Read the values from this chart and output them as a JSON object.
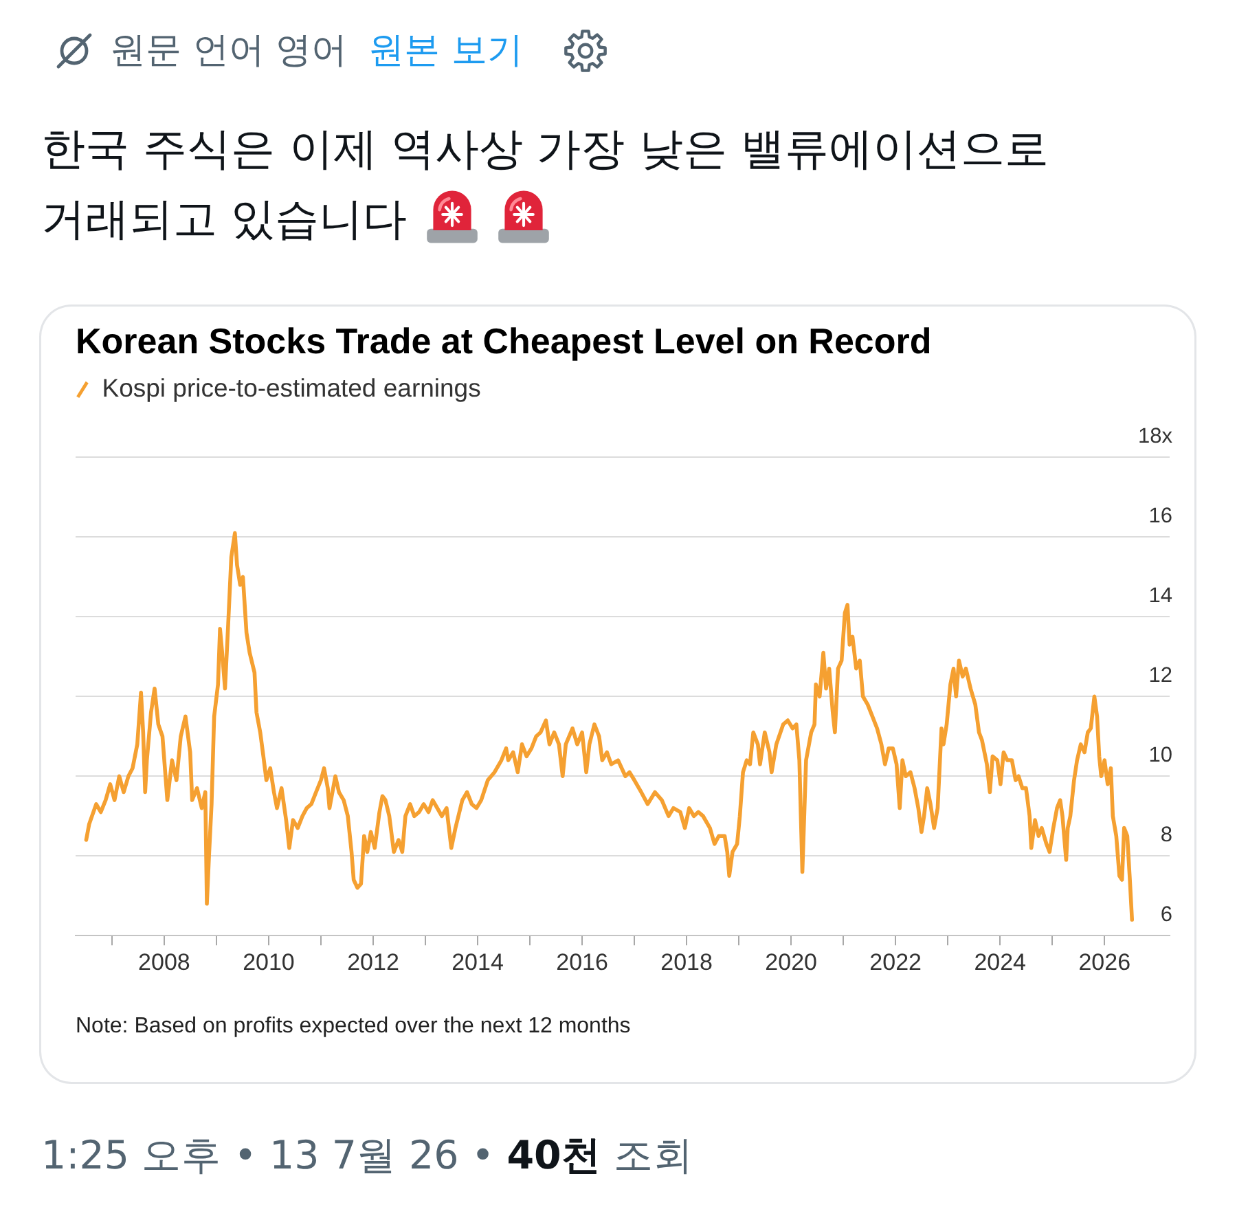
{
  "chart_data": {
    "type": "line",
    "title": "Korean Stocks Trade at Cheapest Level on Record",
    "annotations": [
      "원문 언어 영어",
      "원본 보기",
      "한국 주식은 이제 역사상 가장 낮은 밸류에이션으로 거래되고 있습니다",
      "Note: Based on profits expected over the next 12 months",
      "1:25 오후 • 13 7월 26 •",
      "40천",
      "조회"
    ],
    "x": [
      "2006-07-05",
      "2006-07-26",
      "2006-09-13",
      "2006-10-15",
      "2006-11-18",
      "2006-12-20",
      "2007-01-19",
      "2007-02-21",
      "2007-03-24",
      "2007-04-26",
      "2007-05-25",
      "2007-06-27",
      "2007-07-23",
      "2007-08-07",
      "2007-08-21",
      "2007-09-02",
      "2007-10-01",
      "2007-10-26",
      "2007-11-21",
      "2007-12-20",
      "2008-01-23",
      "2008-02-25",
      "2008-03-27",
      "2008-04-26",
      "2008-05-29",
      "2008-07-01",
      "2008-07-15",
      "2008-08-18",
      "2008-09-20",
      "2008-10-15",
      "2008-10-26",
      "2008-11-10",
      "2008-11-28",
      "2008-12-16",
      "2009-01-12",
      "2009-01-26",
      "2009-02-10",
      "2009-03-02",
      "2009-03-24",
      "2009-04-15",
      "2009-05-10",
      "2009-05-25",
      "2009-06-16",
      "2009-07-05",
      "2009-07-30",
      "2009-08-21",
      "2009-09-24",
      "2009-10-08",
      "2009-11-03",
      "2009-11-25",
      "2009-12-16",
      "2010-01-12",
      "2010-02-07",
      "2010-02-28",
      "2010-04-01",
      "2010-05-03",
      "2010-05-25",
      "2010-06-20",
      "2010-07-23",
      "2010-08-25",
      "2010-09-24",
      "2010-10-26",
      "2010-11-28",
      "2011-01-01",
      "2011-01-23",
      "2011-02-18",
      "2011-03-02",
      "2011-04-12",
      "2011-05-07",
      "2011-06-09",
      "2011-07-08",
      "2011-08-03",
      "2011-08-18",
      "2011-09-13",
      "2011-10-08",
      "2011-10-30",
      "2011-11-21",
      "2011-12-16",
      "2012-01-12",
      "2012-02-14",
      "2012-03-06",
      "2012-03-27",
      "2012-04-23",
      "2012-05-25",
      "2012-06-27",
      "2012-07-23",
      "2012-08-14",
      "2012-09-16",
      "2012-10-15",
      "2012-11-18",
      "2012-12-20",
      "2013-01-23",
      "2013-02-21",
      "2013-04-26",
      "2013-05-29",
      "2013-07-01",
      "2013-07-30",
      "2013-09-16",
      "2013-10-19",
      "2013-11-21",
      "2013-12-24",
      "2014-01-26",
      "2014-03-13",
      "2014-04-29",
      "2014-06-16",
      "2014-07-19",
      "2014-08-03",
      "2014-09-06",
      "2014-10-08",
      "2014-11-07",
      "2014-12-09",
      "2015-01-12",
      "2015-02-14",
      "2015-03-17",
      "2015-04-23",
      "2015-05-18",
      "2015-06-20",
      "2015-07-23",
      "2015-08-18",
      "2015-09-09",
      "2015-10-26",
      "2015-11-28",
      "2016-01-01",
      "2016-01-30",
      "2016-02-21",
      "2016-03-27",
      "2016-04-29",
      "2016-05-21",
      "2016-06-23",
      "2016-07-23",
      "2016-09-09",
      "2016-10-30",
      "2016-11-28",
      "2017-01-01",
      "2017-02-18",
      "2017-04-04",
      "2017-05-25",
      "2017-07-12",
      "2017-08-28",
      "2017-10-01",
      "2017-11-18",
      "2017-12-20",
      "2018-01-19",
      "2018-02-21",
      "2018-03-24",
      "2018-04-26",
      "2018-06-13",
      "2018-07-15",
      "2018-08-14",
      "2018-09-24",
      "2018-10-12",
      "2018-10-26",
      "2018-11-18",
      "2018-12-20",
      "2019-01-08",
      "2019-01-30",
      "2019-02-25",
      "2019-03-20",
      "2019-04-12",
      "2019-05-14",
      "2019-05-29",
      "2019-07-01",
      "2019-08-03",
      "2019-08-18",
      "2019-09-20",
      "2019-11-07",
      "2019-12-09",
      "2020-01-12",
      "2020-02-07",
      "2020-02-28",
      "2020-03-20",
      "2020-04-15",
      "2020-05-21",
      "2020-06-13",
      "2020-06-23",
      "2020-07-19",
      "2020-08-14",
      "2020-09-02",
      "2020-09-24",
      "2020-10-19",
      "2020-11-03",
      "2020-11-25",
      "2020-12-20",
      "2021-01-12",
      "2021-01-30",
      "2021-02-14",
      "2021-03-06",
      "2021-04-01",
      "2021-04-26",
      "2021-05-18",
      "2021-06-20",
      "2021-07-23",
      "2021-08-25",
      "2021-09-24",
      "2021-10-19",
      "2021-11-14",
      "2021-12-13",
      "2022-01-08",
      "2022-01-30",
      "2022-02-18",
      "2022-03-13",
      "2022-04-15",
      "2022-05-14",
      "2022-06-09",
      "2022-07-01",
      "2022-07-19",
      "2022-08-10",
      "2022-09-02",
      "2022-09-27",
      "2022-10-22",
      "2022-11-18",
      "2022-12-02",
      "2022-12-24",
      "2023-01-19",
      "2023-02-10",
      "2023-02-28",
      "2023-03-20",
      "2023-04-15",
      "2023-05-07",
      "2023-06-09",
      "2023-07-12",
      "2023-08-07",
      "2023-08-28",
      "2023-10-01",
      "2023-10-22",
      "2023-11-10",
      "2023-12-13",
      "2024-01-04",
      "2024-01-26",
      "2024-02-21",
      "2024-03-24",
      "2024-04-19",
      "2024-05-10",
      "2024-06-05",
      "2024-07-01",
      "2024-07-26",
      "2024-08-07",
      "2024-09-02",
      "2024-09-27",
      "2024-10-19",
      "2024-11-21",
      "2024-12-13",
      "2025-01-08",
      "2025-02-03",
      "2025-02-25",
      "2025-03-13",
      "2025-04-08",
      "2025-04-19",
      "2025-05-07",
      "2025-06-02",
      "2025-06-23",
      "2025-07-19",
      "2025-08-14",
      "2025-09-06",
      "2025-09-27",
      "2025-10-22",
      "2025-11-10",
      "2025-11-25",
      "2025-12-09",
      "2026-01-01",
      "2026-01-23",
      "2026-02-14",
      "2026-02-28",
      "2026-03-24",
      "2026-04-15",
      "2026-05-03",
      "2026-05-18",
      "2026-06-09",
      "2026-06-27",
      "2026-07-12"
    ],
    "series": [
      {
        "name": "Kospi price-to-estimated earnings",
        "color": "#f5a031",
        "values": [
          8.4,
          8.8,
          9.3,
          9.1,
          9.4,
          9.8,
          9.4,
          10,
          9.6,
          10,
          10.2,
          10.8,
          12.1,
          11.1,
          9.6,
          10.4,
          11.6,
          12.2,
          11.3,
          11,
          9.4,
          10.4,
          9.9,
          11,
          11.5,
          10.6,
          9.4,
          9.7,
          9.2,
          9.6,
          6.8,
          8,
          9.3,
          11.5,
          12.3,
          13.7,
          13.1,
          12.2,
          13.8,
          15.5,
          16.1,
          15.3,
          14.8,
          15,
          13.6,
          13.1,
          12.6,
          11.6,
          11.1,
          10.5,
          9.9,
          10.2,
          9.6,
          9.2,
          9.7,
          8.9,
          8.2,
          8.9,
          8.7,
          9,
          9.2,
          9.3,
          9.6,
          9.9,
          10.2,
          9.7,
          9.2,
          10,
          9.6,
          9.4,
          9,
          8.1,
          7.4,
          7.2,
          7.3,
          8.5,
          8.1,
          8.6,
          8.2,
          9.1,
          9.5,
          9.4,
          9,
          8.1,
          8.4,
          8.1,
          9,
          9.3,
          9,
          9.1,
          9.3,
          9.1,
          9.4,
          9,
          9.2,
          8.2,
          8.7,
          9.4,
          9.6,
          9.3,
          9.2,
          9.4,
          9.9,
          10.1,
          10.4,
          10.7,
          10.4,
          10.6,
          10.1,
          10.8,
          10.5,
          10.7,
          11,
          11.1,
          11.4,
          10.8,
          11.1,
          10.8,
          10,
          10.8,
          11.2,
          10.8,
          11.1,
          10.1,
          10.8,
          11.3,
          11,
          10.4,
          10.6,
          10.3,
          10.4,
          10,
          10.1,
          9.9,
          9.6,
          9.3,
          9.6,
          9.4,
          9,
          9.2,
          9.1,
          8.7,
          9.2,
          9,
          9.1,
          9,
          8.7,
          8.3,
          8.5,
          8.5,
          8.1,
          7.5,
          8.1,
          8.3,
          9,
          10.1,
          10.4,
          10.3,
          11.1,
          10.8,
          10.3,
          11.1,
          10.6,
          10.1,
          10.8,
          11.3,
          11.4,
          11.2,
          11.3,
          10.4,
          7.6,
          10.4,
          11.1,
          11.3,
          12.3,
          12,
          13.1,
          12.2,
          12.7,
          11.6,
          11.1,
          12.7,
          12.9,
          14.1,
          14.3,
          13.3,
          13.5,
          12.7,
          12.9,
          12,
          11.8,
          11.5,
          11.2,
          10.8,
          10.3,
          10.7,
          10.7,
          10.3,
          9.2,
          10.4,
          10,
          10.1,
          9.7,
          9.2,
          8.6,
          9,
          9.7,
          9.3,
          8.7,
          9.2,
          11.2,
          10.8,
          11.3,
          12.3,
          12.7,
          12,
          12.9,
          12.5,
          12.7,
          12.2,
          11.8,
          11.1,
          10.9,
          10.3,
          9.6,
          10.5,
          10.4,
          9.8,
          10.6,
          10.4,
          10.4,
          9.9,
          10,
          9.7,
          9.7,
          9,
          8.2,
          8.9,
          8.5,
          8.7,
          8.3,
          8.1,
          8.7,
          9.2,
          9.4,
          9,
          7.9,
          8.7,
          9,
          9.9,
          10.4,
          10.8,
          10.6,
          11.1,
          11.2,
          12,
          11.5,
          10.5,
          10,
          10.4,
          9.8,
          10.2,
          9,
          8.5,
          7.5,
          7.4,
          8.7,
          8.5,
          7.4,
          6.4
        ]
      }
    ],
    "xlim": [
      "2006-04-22",
      "2027-04-01"
    ],
    "xticks": [
      {
        "value": "2007",
        "label": null
      },
      "2008",
      {
        "value": "2009",
        "label": null
      },
      "2010",
      {
        "value": "2011",
        "label": null
      },
      "2012",
      {
        "value": "2013",
        "label": null
      },
      "2014",
      {
        "value": "2015",
        "label": null
      },
      "2016",
      {
        "value": "2017",
        "label": null
      },
      "2018",
      {
        "value": "2019",
        "label": null
      },
      "2020",
      {
        "value": "2021",
        "label": null
      },
      "2022",
      {
        "value": "2023",
        "label": null
      },
      "2024",
      {
        "value": "2025",
        "label": null
      },
      "2026"
    ],
    "ylim": [
      6,
      18
    ],
    "yticks": [
      6,
      8,
      10,
      12,
      14,
      16,
      {
        "value": 18,
        "label": "18x"
      }
    ],
    "grid": "y",
    "legend": "top left",
    "marker": "none",
    "line_style": "solid"
  }
}
